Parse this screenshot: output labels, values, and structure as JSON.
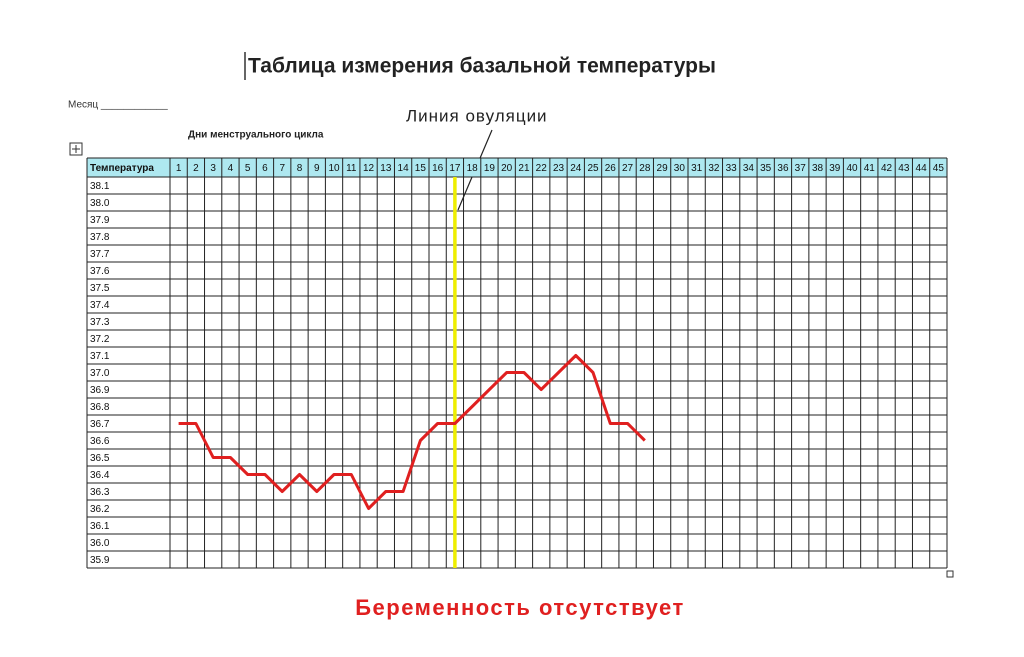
{
  "chart_data": {
    "type": "line",
    "title": "Таблица измерения базальной температуры",
    "month_label": "Месяц ____________",
    "x_label": "Дни менструального цикла",
    "y_label": "Температура",
    "annotation": "Линия овуляции",
    "ovulation_day": 17,
    "caption": "Беременность отсутствует",
    "categories": [
      "1",
      "2",
      "3",
      "4",
      "5",
      "6",
      "7",
      "8",
      "9",
      "10",
      "11",
      "12",
      "13",
      "14",
      "15",
      "16",
      "17",
      "18",
      "19",
      "20",
      "21",
      "22",
      "23",
      "24",
      "25",
      "26",
      "27",
      "28",
      "29",
      "30",
      "31",
      "32",
      "33",
      "34",
      "35",
      "36",
      "37",
      "38",
      "39",
      "40",
      "41",
      "42",
      "43",
      "44",
      "45"
    ],
    "series": [
      {
        "color": "#e02020",
        "values": [
          36.7,
          36.7,
          36.5,
          36.5,
          36.4,
          36.4,
          36.3,
          36.4,
          36.3,
          36.4,
          36.4,
          36.2,
          36.3,
          36.3,
          36.6,
          36.7,
          36.7,
          36.8,
          36.9,
          37.0,
          37.0,
          36.9,
          37.0,
          37.1,
          37.0,
          36.7,
          36.7,
          36.6,
          null,
          null,
          null,
          null,
          null,
          null,
          null,
          null,
          null,
          null,
          null,
          null,
          null,
          null,
          null,
          null,
          null
        ]
      }
    ],
    "ylim": [
      35.9,
      38.1
    ],
    "yticks": [
      38.1,
      {
        "value": 38,
        "label": "38.0"
      },
      37.9,
      37.8,
      37.7,
      37.6,
      37.5,
      37.4,
      37.3,
      37.2,
      37.1,
      {
        "value": 37,
        "label": "37.0"
      },
      36.9,
      36.8,
      36.7,
      36.6,
      36.5,
      36.4,
      36.3,
      36.2,
      36.1,
      {
        "value": 36,
        "label": "36.0"
      },
      35.9
    ]
  }
}
